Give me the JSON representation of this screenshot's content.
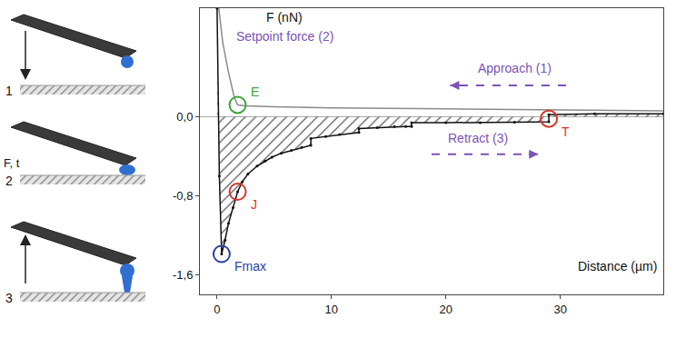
{
  "chart_data": {
    "type": "line",
    "x_label": "Distance (µm)",
    "y_label": "F (nN)",
    "xlim": [
      -1.5,
      39
    ],
    "ylim": [
      -1.8,
      1.1
    ],
    "xticks": [
      0,
      10,
      20,
      30
    ],
    "yticks": [
      {
        "value": 0,
        "label": "0,0"
      },
      {
        "value": -0.8,
        "label": "-0,8"
      },
      {
        "value": -1.6,
        "label": "-1,6"
      }
    ],
    "grid": false,
    "series": [
      {
        "name": "Approach (1)",
        "type": "line",
        "color": "#8a8a8a",
        "line_style": "solid",
        "x": [
          0.15,
          0.5,
          1.0,
          1.5,
          1.8,
          2.5,
          5,
          10,
          20,
          30,
          39
        ],
        "values": [
          1.1,
          0.75,
          0.45,
          0.2,
          0.12,
          0.11,
          0.1,
          0.09,
          0.08,
          0.07,
          0.06
        ]
      },
      {
        "name": "Retract (3)",
        "type": "area",
        "color": "#111111",
        "line_style": "solid",
        "marker": "circle",
        "x": [
          0.0,
          0.2,
          0.4,
          0.7,
          1.0,
          1.4,
          1.8,
          2.2,
          2.7,
          3.5,
          4.2,
          4.8,
          5.6,
          6.5,
          7.4,
          8.2,
          8.2,
          9.5,
          10.7,
          12.4,
          12.4,
          14,
          15.5,
          16.5,
          17,
          17,
          20,
          23,
          26,
          29,
          29,
          33,
          39
        ],
        "values": [
          1.1,
          -0.6,
          -1.39,
          -1.25,
          -1.08,
          -0.92,
          -0.76,
          -0.66,
          -0.58,
          -0.5,
          -0.45,
          -0.41,
          -0.37,
          -0.34,
          -0.31,
          -0.29,
          -0.22,
          -0.2,
          -0.18,
          -0.16,
          -0.12,
          -0.11,
          -0.1,
          -0.1,
          -0.1,
          -0.06,
          -0.06,
          -0.06,
          -0.055,
          -0.05,
          0.02,
          0.03,
          0.03
        ]
      }
    ],
    "annotations": [
      {
        "text": "Setpoint force (2)",
        "color": "#7d52b5"
      },
      {
        "text": "E",
        "x": 1.8,
        "y": 0.12,
        "color": "#3aa63a"
      },
      {
        "text": "J",
        "x": 1.8,
        "y": -0.76,
        "color": "#d9362b"
      },
      {
        "text": "T",
        "x": 29,
        "y": -0.02,
        "color": "#d9362b"
      },
      {
        "text": "Fmax",
        "x": 0.4,
        "y": -1.39,
        "color": "#2b3fa8"
      }
    ],
    "label_color": "#7d52b5"
  },
  "diagram": {
    "steps": [
      {
        "label": "1"
      },
      {
        "label": "2",
        "note": "F, t"
      },
      {
        "label": "3"
      }
    ]
  }
}
